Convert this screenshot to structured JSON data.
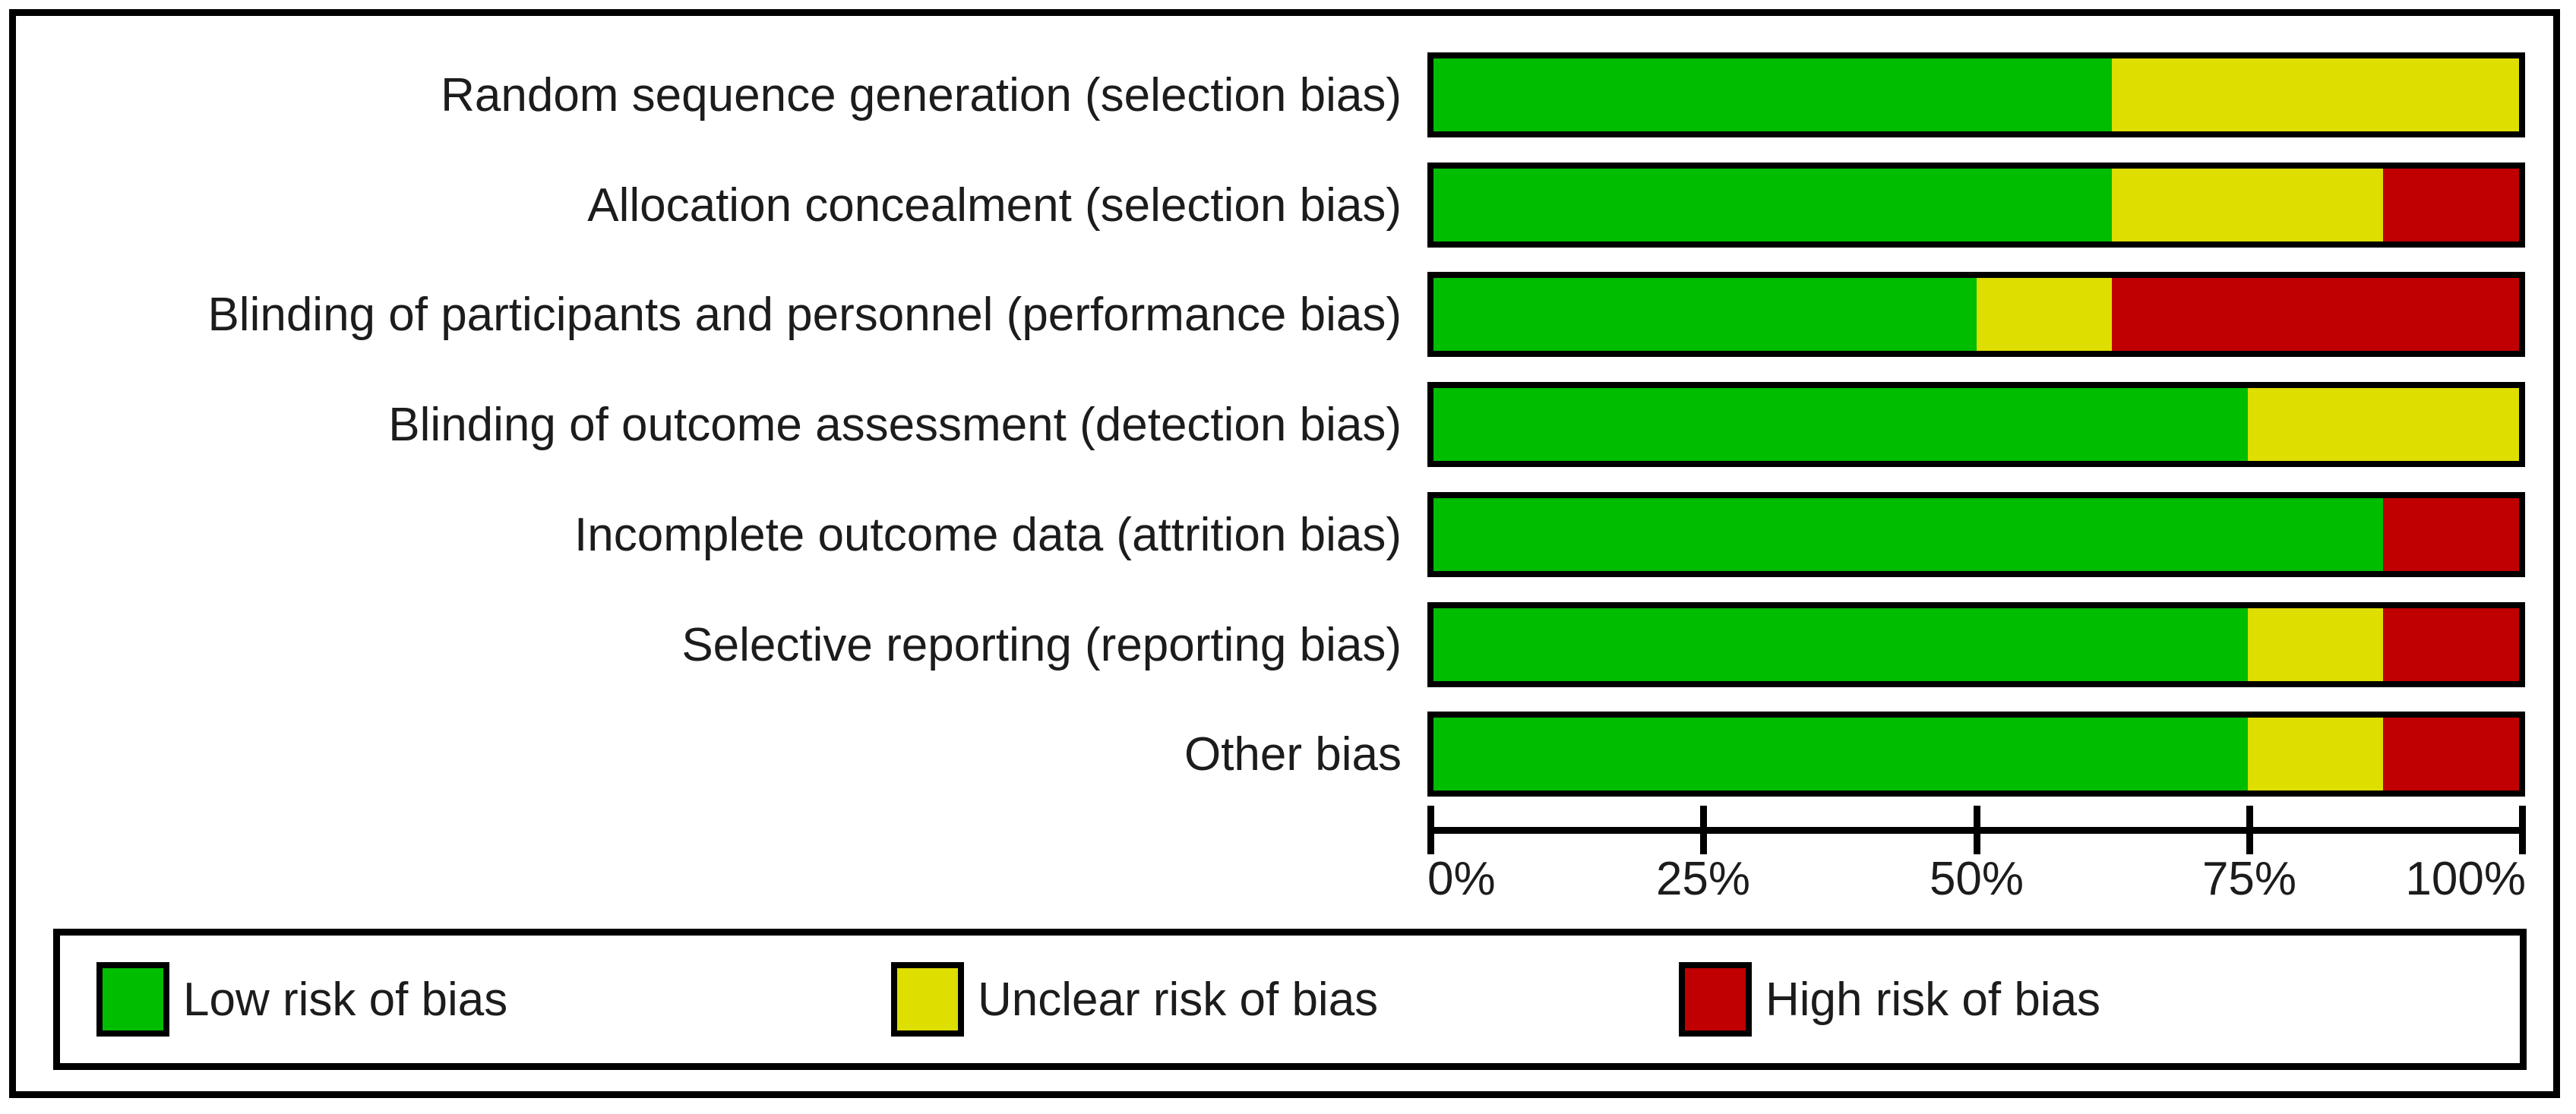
{
  "chart_data": {
    "type": "bar",
    "stacked": true,
    "orientation": "horizontal",
    "title": "",
    "xlabel": "",
    "ylabel": "",
    "xlim": [
      0,
      100
    ],
    "grid": false,
    "legend_position": "bottom",
    "categories": [
      "Random sequence generation (selection bias)",
      "Allocation concealment (selection bias)",
      "Blinding of participants and personnel (performance bias)",
      "Blinding of outcome assessment (detection bias)",
      "Incomplete outcome data (attrition bias)",
      "Selective reporting (reporting bias)",
      "Other bias"
    ],
    "series": [
      {
        "key": "low",
        "name": "Low risk of bias",
        "color": "#00bd00",
        "values": [
          62.5,
          62.5,
          50.0,
          75.0,
          87.5,
          75.0,
          75.0
        ]
      },
      {
        "key": "unclear",
        "name": "Unclear risk of bias",
        "color": "#dede00",
        "values": [
          37.5,
          25.0,
          12.5,
          25.0,
          0.0,
          12.5,
          12.5
        ]
      },
      {
        "key": "high",
        "name": "High risk of bias",
        "color": "#c00000",
        "values": [
          0.0,
          12.5,
          37.5,
          0.0,
          12.5,
          12.5,
          12.5
        ]
      }
    ],
    "x_tick_labels": [
      "0%",
      "25%",
      "50%",
      "75%",
      "100%"
    ]
  },
  "colors": {
    "low_risk": "#00bd00",
    "unclear_risk": "#dede00",
    "high_risk": "#c00000",
    "border": "#000000",
    "background": "#ffffff"
  }
}
